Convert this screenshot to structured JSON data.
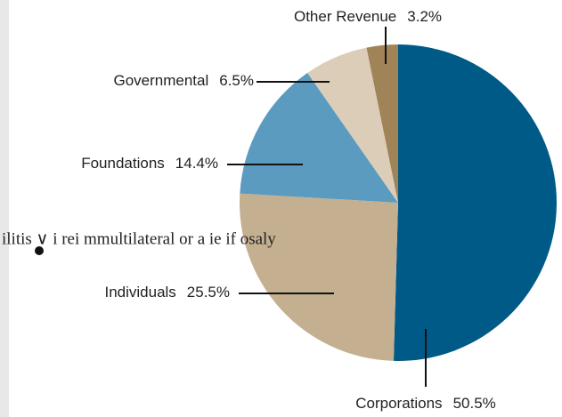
{
  "chart_data": {
    "type": "pie",
    "categories": [
      "Corporations",
      "Individuals",
      "Foundations",
      "Governmental",
      "Other Revenue"
    ],
    "values": [
      50.5,
      25.5,
      14.4,
      6.5,
      3.2
    ],
    "value_labels": [
      "50.5%",
      "25.5%",
      "14.4%",
      "6.5%",
      "3.2%"
    ],
    "colors": [
      "#005a87",
      "#c4b091",
      "#5b9bbf",
      "#dccdb8",
      "#a08458"
    ],
    "overlay_text": "ilitis ∨ i   rei        mmultilateral or  a  ie  if  osaly"
  }
}
